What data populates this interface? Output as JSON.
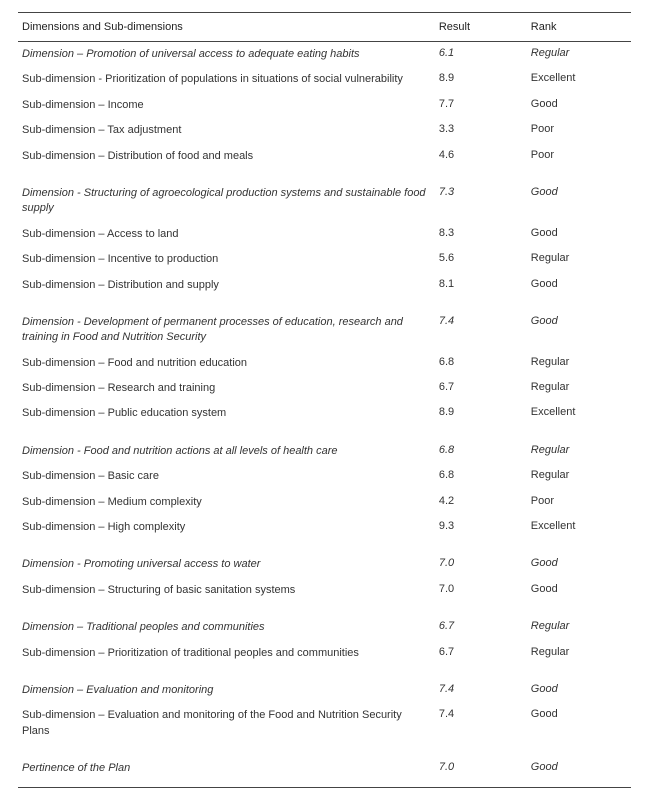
{
  "headers": {
    "dimensions": "Dimensions and Sub-dimensions",
    "result": "Result",
    "rank": "Rank"
  },
  "groups": [
    {
      "dimension": {
        "label": "Dimension – Promotion of universal access to adequate eating habits",
        "result": "6.1",
        "rank": "Regular"
      },
      "subs": [
        {
          "label": "Sub-dimension - Prioritization of populations in situations of social vulnerability",
          "result": "8.9",
          "rank": "Excellent"
        },
        {
          "label": "Sub-dimension – Income",
          "result": "7.7",
          "rank": "Good"
        },
        {
          "label": "Sub-dimension – Tax adjustment",
          "result": "3.3",
          "rank": "Poor"
        },
        {
          "label": "Sub-dimension – Distribution of food and meals",
          "result": "4.6",
          "rank": "Poor"
        }
      ]
    },
    {
      "dimension": {
        "label": "Dimension - Structuring of agroecological production systems and sustainable food supply",
        "result": "7.3",
        "rank": "Good"
      },
      "subs": [
        {
          "label": "Sub-dimension – Access to land",
          "result": "8.3",
          "rank": "Good"
        },
        {
          "label": "Sub-dimension – Incentive to production",
          "result": "5.6",
          "rank": "Regular"
        },
        {
          "label": "Sub-dimension – Distribution and supply",
          "result": "8.1",
          "rank": "Good"
        }
      ]
    },
    {
      "dimension": {
        "label": "Dimension - Development of permanent processes of education, research and training in Food and Nutrition Security",
        "result": "7.4",
        "rank": "Good"
      },
      "subs": [
        {
          "label": "Sub-dimension – Food and nutrition education",
          "result": "6.8",
          "rank": "Regular"
        },
        {
          "label": "Sub-dimension – Research and training",
          "result": "6.7",
          "rank": "Regular"
        },
        {
          "label": "Sub-dimension – Public education system",
          "result": "8.9",
          "rank": "Excellent"
        }
      ]
    },
    {
      "dimension": {
        "label": "Dimension - Food and nutrition actions at all levels of health care",
        "result": "6.8",
        "rank": "Regular"
      },
      "subs": [
        {
          "label": "Sub-dimension – Basic care",
          "result": "6.8",
          "rank": "Regular"
        },
        {
          "label": "Sub-dimension – Medium complexity",
          "result": "4.2",
          "rank": "Poor"
        },
        {
          "label": "Sub-dimension – High complexity",
          "result": "9.3",
          "rank": "Excellent"
        }
      ]
    },
    {
      "dimension": {
        "label": "Dimension - Promoting universal access to water",
        "result": "7.0",
        "rank": "Good"
      },
      "subs": [
        {
          "label": "Sub-dimension – Structuring of basic sanitation systems",
          "result": "7.0",
          "rank": "Good"
        }
      ]
    },
    {
      "dimension": {
        "label": "Dimension – Traditional peoples and communities",
        "result": "6.7",
        "rank": "Regular"
      },
      "subs": [
        {
          "label": "Sub-dimension – Prioritization of traditional peoples and communities",
          "result": "6.7",
          "rank": "Regular"
        }
      ]
    },
    {
      "dimension": {
        "label": "Dimension – Evaluation and monitoring",
        "result": "7.4",
        "rank": "Good"
      },
      "subs": [
        {
          "label": "Sub-dimension – Evaluation and monitoring  of the Food and Nutrition Security Plans",
          "result": "7.4",
          "rank": "Good"
        }
      ]
    }
  ],
  "pertinence": {
    "label": "Pertinence of the Plan",
    "result": "7.0",
    "rank": "Good"
  }
}
